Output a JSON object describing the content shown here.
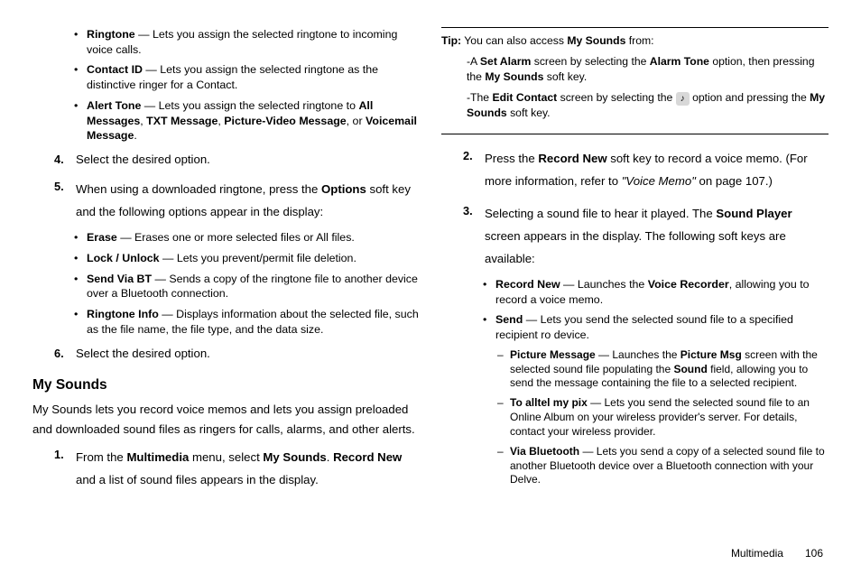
{
  "left": {
    "bullets_top": [
      {
        "term": "Ringtone",
        "desc": " — Lets you assign the selected ringtone to incoming voice calls."
      },
      {
        "term": "Contact ID",
        "desc": " — Lets you assign the selected ringtone as the distinctive ringer for a Contact."
      }
    ],
    "alert_tone": {
      "term": "Alert Tone",
      "pre": " — Lets you assign the selected ringtone to ",
      "b1": "All Messages",
      "c1": ", ",
      "b2": "TXT Message",
      "c2": ", ",
      "b3": "Picture-Video Message",
      "c3": ", or ",
      "b4": "Voicemail Message",
      "c4": "."
    },
    "step4": {
      "num": "4.",
      "text": "Select the desired option."
    },
    "step5": {
      "num": "5.",
      "pre": "When using a downloaded ringtone, press the ",
      "b": "Options",
      "post": " soft key and the following options appear in the display:"
    },
    "bullets_mid": [
      {
        "term": "Erase",
        "desc": " — Erases one or more selected files or All files."
      },
      {
        "term": "Lock / Unlock",
        "desc": " — Lets you prevent/permit file deletion."
      },
      {
        "term": "Send Via BT",
        "desc": " — Sends a copy of the ringtone file to another device over a Bluetooth connection."
      },
      {
        "term": "Ringtone Info",
        "desc": " — Displays information about the selected file, such as the file name, the file type, and the data size."
      }
    ],
    "step6": {
      "num": "6.",
      "text": "Select the desired option."
    },
    "heading": "My Sounds",
    "intro": "My Sounds lets you record voice memos and lets you assign preloaded and downloaded sound files as ringers for calls, alarms, and other alerts.",
    "step1": {
      "num": "1.",
      "pre": "From the ",
      "b1": "Multimedia",
      "mid": " menu, select ",
      "b2": "My Sounds",
      "post1": ". ",
      "b3": "Record New",
      "post2": " and a list of sound files appears in the display."
    }
  },
  "right": {
    "tip": {
      "label": "Tip:",
      "pre": " You can also access ",
      "b": "My Sounds",
      "post": " from:"
    },
    "tip_sub1": {
      "pre": "-A ",
      "b1": "Set Alarm",
      "mid1": " screen by selecting the ",
      "b2": "Alarm Tone",
      "mid2": " option, then pressing the ",
      "b3": "My Sounds",
      "post": " soft key."
    },
    "tip_sub2": {
      "pre": "-The ",
      "b1": "Edit Contact",
      "mid1": " screen by selecting the ",
      "icon": "♪",
      "mid2": " option and pressing the ",
      "b2": "My Sounds",
      "post": " soft key."
    },
    "step2": {
      "num": "2.",
      "pre": "Press the ",
      "b": "Record New",
      "mid": " soft key to record a voice memo. (For more information, refer to ",
      "i": "\"Voice Memo\"",
      "post": "  on page 107.)"
    },
    "step3": {
      "num": "3.",
      "pre": "Selecting a sound file to hear it played. The ",
      "b": "Sound Player",
      "post": " screen appears in the display. The following soft keys are available:"
    },
    "rb1": {
      "term": "Record New",
      "mid": " — Launches the ",
      "b": "Voice Recorder",
      "post": ", allowing you to record a voice memo."
    },
    "rb2": {
      "term": "Send",
      "post": " — Lets you send the selected sound file to a specified recipient ro device."
    },
    "sub1": {
      "term": "Picture Message",
      "mid1": " — Launches the ",
      "b1": "Picture Msg",
      "mid2": " screen with the selected sound file populating the ",
      "b2": "Sound",
      "post": " field, allowing you to send the message containing the file to a selected recipient."
    },
    "sub2": {
      "term": "To alltel my pix",
      "post": " — Lets you send the selected sound file to an Online Album on your wireless provider's server. For details, contact your wireless provider."
    },
    "sub3": {
      "term": "Via Bluetooth",
      "post": " — Lets you send a copy of a selected sound file to another Bluetooth device over a Bluetooth connection with your Delve."
    }
  },
  "footer": {
    "section": "Multimedia",
    "page": "106"
  }
}
